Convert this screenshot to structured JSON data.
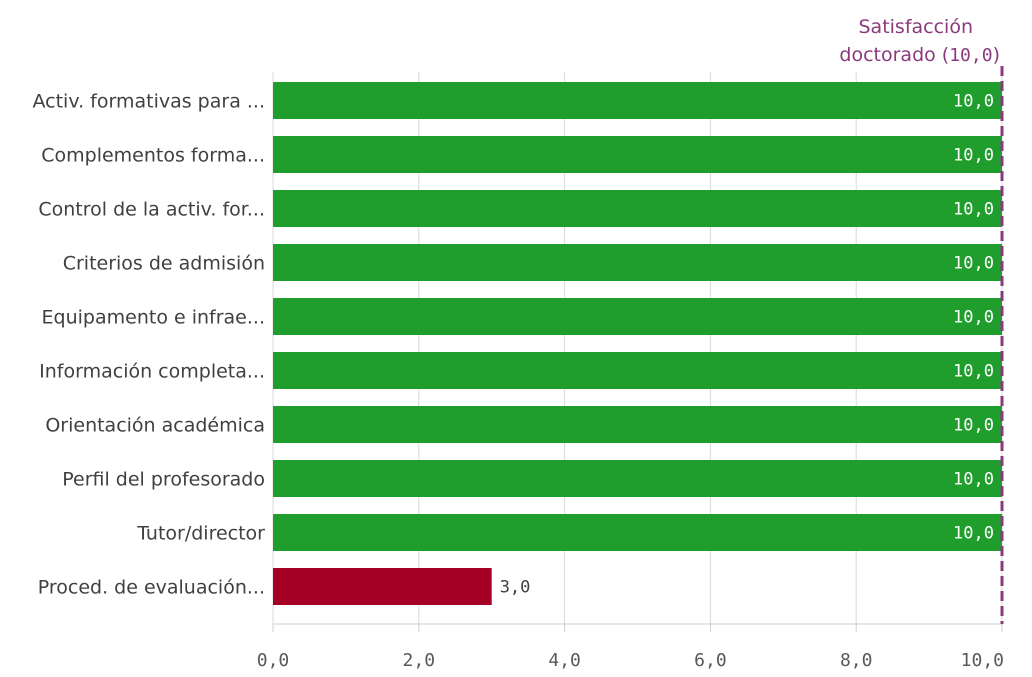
{
  "chart_data": {
    "type": "bar",
    "orientation": "horizontal",
    "categories": [
      "Activ. formativas para ...",
      "Complementos forma...",
      "Control de la activ. for...",
      "Criterios de admisión",
      "Equipamento e infrae...",
      "Información completa...",
      "Orientación académica",
      "Perfil del profesorado",
      "Tutor/director",
      "Proced. de evaluación..."
    ],
    "values": [
      10.0,
      10.0,
      10.0,
      10.0,
      10.0,
      10.0,
      10.0,
      10.0,
      10.0,
      3.0
    ],
    "value_labels": [
      "10,0",
      "10,0",
      "10,0",
      "10,0",
      "10,0",
      "10,0",
      "10,0",
      "10,0",
      "10,0",
      "3,0"
    ],
    "bar_colors": [
      "#1f9e2e",
      "#1f9e2e",
      "#1f9e2e",
      "#1f9e2e",
      "#1f9e2e",
      "#1f9e2e",
      "#1f9e2e",
      "#1f9e2e",
      "#1f9e2e",
      "#a50026"
    ],
    "value_label_colors": [
      "#ffffff",
      "#ffffff",
      "#ffffff",
      "#ffffff",
      "#ffffff",
      "#ffffff",
      "#ffffff",
      "#ffffff",
      "#ffffff",
      "#404040"
    ],
    "x_ticks": [
      0,
      2,
      4,
      6,
      8,
      10
    ],
    "x_tick_labels": [
      "0,0",
      "2,0",
      "4,0",
      "6,0",
      "8,0",
      "10,0"
    ],
    "xlim": [
      0,
      10
    ],
    "grid": true,
    "reference_line": {
      "value": 10.0,
      "label_line1": "Satisfacción",
      "label_line2_prefix": "doctorado (",
      "label_line2_value": "10,0",
      "label_line2_suffix": ")",
      "color": "#8b3a7e",
      "style": "dashed"
    },
    "title": "",
    "xlabel": "",
    "ylabel": ""
  }
}
